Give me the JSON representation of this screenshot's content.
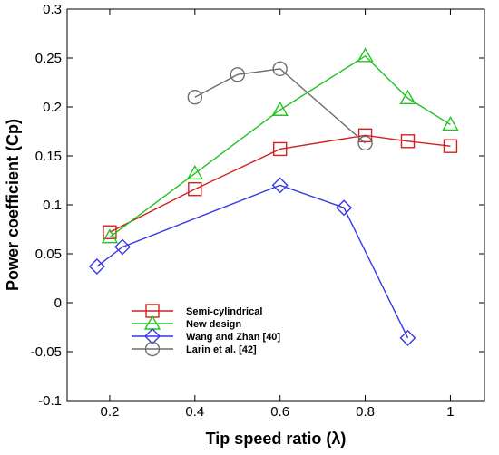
{
  "chart_data": {
    "type": "line",
    "xlabel": "Tip speed ratio (λ)",
    "ylabel": "Power coefficient (Cp)",
    "xlim": [
      0.1,
      1.08
    ],
    "ylim": [
      -0.1,
      0.3
    ],
    "x_ticks": [
      {
        "value": 0.2,
        "label": "0.2"
      },
      {
        "value": 0.4,
        "label": "0.4"
      },
      {
        "value": 0.6,
        "label": "0.6"
      },
      {
        "value": 0.8,
        "label": "0.8"
      },
      {
        "value": 1.0,
        "label": "1"
      }
    ],
    "y_ticks": [
      {
        "value": -0.1,
        "label": "-0.1"
      },
      {
        "value": -0.05,
        "label": "-0.05"
      },
      {
        "value": 0,
        "label": "0"
      },
      {
        "value": 0.05,
        "label": "0.05"
      },
      {
        "value": 0.1,
        "label": "0.1"
      },
      {
        "value": 0.15,
        "label": "0.15"
      },
      {
        "value": 0.2,
        "label": "0.2"
      },
      {
        "value": 0.25,
        "label": "0.25"
      },
      {
        "value": 0.3,
        "label": "0.3"
      }
    ],
    "grid": false,
    "legend_position": "bottom-left",
    "series": [
      {
        "name": "Semi-cylindrical",
        "color": "#d42020",
        "marker": "square",
        "x": [
          0.2,
          0.4,
          0.6,
          0.8,
          0.9,
          1.0
        ],
        "y": [
          0.072,
          0.116,
          0.157,
          0.171,
          0.165,
          0.16
        ]
      },
      {
        "name": "New design",
        "color": "#22c322",
        "marker": "triangle",
        "x": [
          0.2,
          0.4,
          0.6,
          0.8,
          0.9,
          1.0
        ],
        "y": [
          0.067,
          0.132,
          0.197,
          0.252,
          0.209,
          0.182
        ]
      },
      {
        "name": "Wang and Zhan [40]",
        "color": "#3838e0",
        "marker": "diamond",
        "x": [
          0.17,
          0.23,
          0.6,
          0.75,
          0.9
        ],
        "y": [
          0.037,
          0.057,
          0.12,
          0.097,
          -0.036
        ]
      },
      {
        "name": "Larin et al. [42]",
        "color": "#6e6e6e",
        "marker": "circle",
        "x": [
          0.4,
          0.5,
          0.6,
          0.8
        ],
        "y": [
          0.21,
          0.233,
          0.239,
          0.163
        ]
      }
    ]
  }
}
